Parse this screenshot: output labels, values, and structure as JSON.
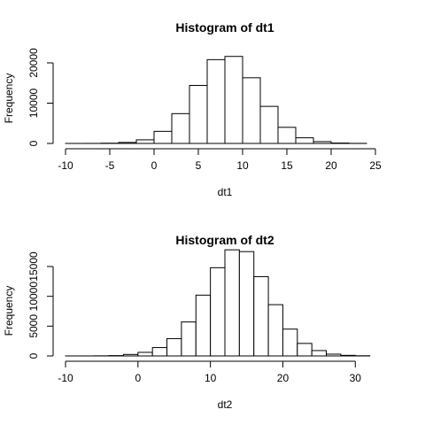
{
  "chart_data": [
    {
      "type": "bar",
      "title": "Histogram of dt1",
      "xlabel": "dt1",
      "ylabel": "Frequency",
      "xlim": [
        -10,
        25
      ],
      "ylim": [
        0,
        20000
      ],
      "x_ticks": [
        -10,
        -5,
        0,
        5,
        10,
        15,
        20,
        25
      ],
      "y_ticks": [
        0,
        10000,
        20000
      ],
      "bin_width": 2,
      "bin_starts": [
        -10,
        -8,
        -6,
        -4,
        -2,
        0,
        2,
        4,
        6,
        8,
        10,
        12,
        14,
        16,
        18,
        20,
        22
      ],
      "values": [
        2,
        10,
        60,
        250,
        900,
        3000,
        7400,
        14400,
        20800,
        21600,
        16300,
        9200,
        4000,
        1400,
        450,
        100,
        20
      ]
    },
    {
      "type": "bar",
      "title": "Histogram of dt2",
      "xlabel": "dt2",
      "ylabel": "Frequency",
      "xlim": [
        -10,
        34
      ],
      "ylim": [
        0,
        15000
      ],
      "x_ticks": [
        -10,
        0,
        10,
        20,
        30
      ],
      "y_ticks": [
        0,
        5000,
        10000,
        15000
      ],
      "bin_width": 2,
      "bin_starts": [
        -10,
        -8,
        -6,
        -4,
        -2,
        0,
        2,
        4,
        6,
        8,
        10,
        12,
        14,
        16,
        18,
        20,
        22,
        24,
        26,
        28,
        30
      ],
      "values": [
        2,
        5,
        20,
        60,
        250,
        600,
        1400,
        2900,
        5700,
        10200,
        14800,
        17800,
        17500,
        13300,
        8600,
        4500,
        2100,
        900,
        300,
        100,
        30
      ]
    }
  ]
}
